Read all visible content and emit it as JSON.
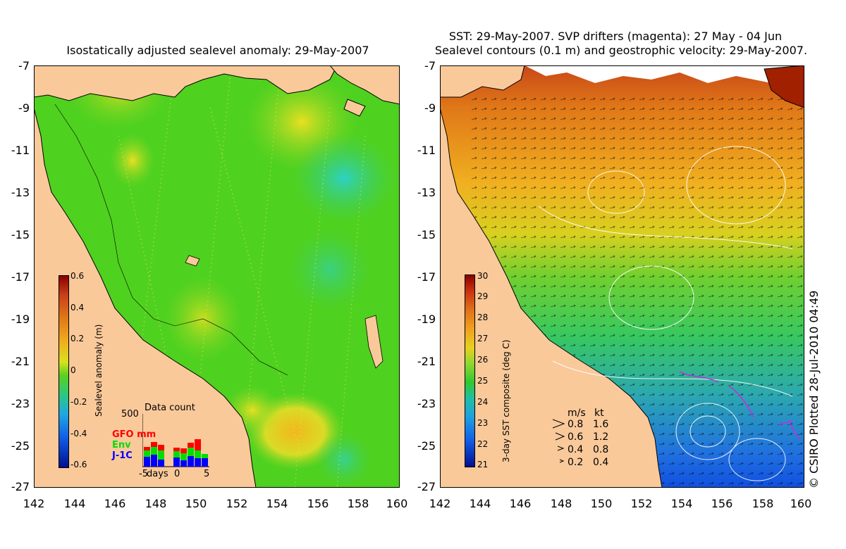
{
  "left_panel": {
    "title": "Isostatically adjusted sealevel anomaly: 29-May-2007",
    "y_ticks": [
      "-7",
      "-9",
      "-11",
      "-13",
      "-15",
      "-17",
      "-19",
      "-21",
      "-23",
      "-25",
      "-27"
    ],
    "x_ticks": [
      "142",
      "144",
      "146",
      "148",
      "150",
      "152",
      "154",
      "156",
      "158",
      "160"
    ],
    "colorbar": {
      "label": "Sealevel anomaly (m)",
      "ticks": [
        "0.6",
        "0.4",
        "0.2",
        "0",
        "-0.2",
        "-0.4",
        "-0.6"
      ],
      "range": [
        -0.6,
        0.6
      ]
    },
    "data_count": {
      "title": "Data count",
      "max": "500",
      "x_ticks": [
        "-5",
        "days",
        "0",
        "5"
      ],
      "legend": [
        {
          "label": "GFO mm",
          "color": "#ff0000"
        },
        {
          "label": "Env",
          "color": "#00dd00"
        },
        {
          "label": "J-1C",
          "color": "#0000ff"
        }
      ]
    }
  },
  "right_panel": {
    "title_line1": "SST: 29-May-2007. SVP drifters (magenta): 27 May - 04 Jun",
    "title_line2": "Sealevel contours (0.1 m) and geostrophic velocity: 29-May-2007.",
    "y_ticks": [
      "-7",
      "-9",
      "-11",
      "-13",
      "-15",
      "-17",
      "-19",
      "-21",
      "-23",
      "-25",
      "-27"
    ],
    "x_ticks": [
      "142",
      "144",
      "146",
      "148",
      "150",
      "152",
      "154",
      "156",
      "158",
      "160"
    ],
    "colorbar": {
      "label": "3-day SST composite (deg C)",
      "ticks": [
        "30",
        "29",
        "28",
        "27",
        "26",
        "25",
        "24",
        "23",
        "22",
        "21"
      ],
      "range": [
        21,
        30
      ]
    },
    "velocity_legend": {
      "header_ms": "m/s",
      "header_kt": "kt",
      "rows": [
        {
          "ms": "0.8",
          "kt": "1.6"
        },
        {
          "ms": "0.6",
          "kt": "1.2"
        },
        {
          "ms": "0.4",
          "kt": "0.8"
        },
        {
          "ms": "0.2",
          "kt": "0.4"
        }
      ]
    }
  },
  "watermark": "© CSIRO Plotted 28-Jul-2010 04:49",
  "colors": {
    "land": "#f9c99a",
    "sla_green": "#4fd11f",
    "sst_orange": "#f0a020",
    "sst_green": "#3cc83c",
    "sst_blue": "#2060e0"
  }
}
